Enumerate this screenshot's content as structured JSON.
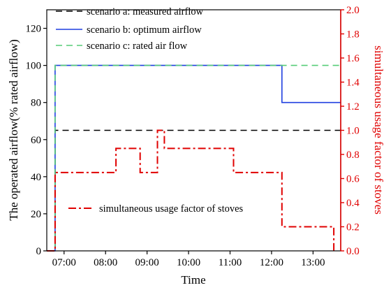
{
  "chart_data": {
    "type": "line",
    "xlabel": "Time",
    "ylabel_left": "The operated airflow(% rated airflow)",
    "ylabel_right": "simultaneous usage factor of stoves",
    "xlim": [
      "06:35",
      "13:40"
    ],
    "ylim_left": [
      0,
      130
    ],
    "ylim_right": [
      0.0,
      2.0
    ],
    "x_ticks": [
      "07:00",
      "08:00",
      "09:00",
      "10:00",
      "11:00",
      "12:00",
      "13:00"
    ],
    "y_ticks_left": [
      "0",
      "20",
      "40",
      "60",
      "80",
      "100",
      "120"
    ],
    "y_ticks_right": [
      "0.0",
      "0.2",
      "0.4",
      "0.6",
      "0.8",
      "1.0",
      "1.2",
      "1.4",
      "1.6",
      "1.8",
      "2.0"
    ],
    "legend_top": "top-left",
    "legend_bottom": "bottom-left",
    "series": [
      {
        "name": "scenario a: measured airflow",
        "axis": "left",
        "color": "#000000",
        "style": "dashed",
        "points": [
          [
            "06:35",
            0
          ],
          [
            "06:47",
            0
          ],
          [
            "06:47",
            65
          ],
          [
            "13:40",
            65
          ]
        ]
      },
      {
        "name": "scenario b: optimum airflow",
        "axis": "left",
        "color": "#1f3fe0",
        "style": "solid",
        "points": [
          [
            "06:35",
            0
          ],
          [
            "06:47",
            0
          ],
          [
            "06:47",
            100
          ],
          [
            "12:15",
            100
          ],
          [
            "12:15",
            80
          ],
          [
            "13:40",
            80
          ]
        ]
      },
      {
        "name": "scenario c: rated air flow",
        "axis": "left",
        "color": "#55cc77",
        "style": "dashed",
        "points": [
          [
            "06:35",
            0
          ],
          [
            "06:47",
            0
          ],
          [
            "06:47",
            100
          ],
          [
            "13:40",
            100
          ]
        ]
      },
      {
        "name": "simultaneous usage factor of stoves",
        "axis": "right",
        "color": "#e00000",
        "style": "dashdot",
        "points": [
          [
            "06:35",
            0.0
          ],
          [
            "06:47",
            0.0
          ],
          [
            "06:47",
            0.65
          ],
          [
            "08:15",
            0.65
          ],
          [
            "08:15",
            0.85
          ],
          [
            "08:50",
            0.85
          ],
          [
            "08:50",
            0.65
          ],
          [
            "09:15",
            0.65
          ],
          [
            "09:15",
            1.0
          ],
          [
            "09:25",
            1.0
          ],
          [
            "09:25",
            0.85
          ],
          [
            "11:05",
            0.85
          ],
          [
            "11:05",
            0.65
          ],
          [
            "12:15",
            0.65
          ],
          [
            "12:15",
            0.2
          ],
          [
            "13:30",
            0.2
          ],
          [
            "13:30",
            0.0
          ]
        ]
      }
    ]
  }
}
